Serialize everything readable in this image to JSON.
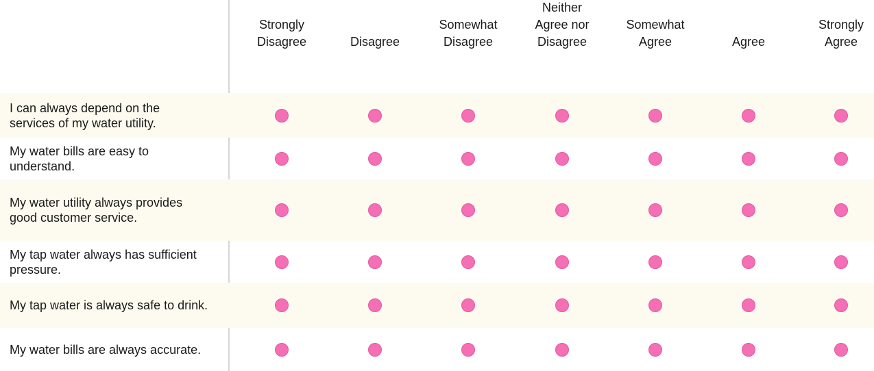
{
  "matrix": {
    "scale": [
      "Strongly\nDisagree",
      "Disagree",
      "Somewhat\nDisagree",
      "Neither\nAgree nor\nDisagree",
      "Somewhat\nAgree",
      "Agree",
      "Strongly\nAgree"
    ],
    "statements": [
      "I can always depend on the services of my water utility.",
      "My water bills are easy to understand.",
      "My water utility always provides good customer service.",
      "My tap water always has sufficient pressure.",
      "My tap water is always safe to drink.",
      "My water bills are always accurate."
    ],
    "selected": [
      null,
      null,
      null,
      null,
      null,
      null
    ],
    "colors": {
      "radio_fill": "#f46fb4",
      "row_shade": "#fdfbef",
      "divider": "#d6d6d6"
    }
  }
}
